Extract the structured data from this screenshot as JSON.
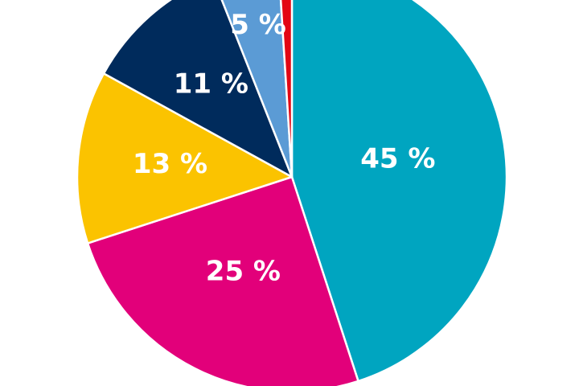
{
  "chart_data": {
    "type": "pie",
    "values": [
      45,
      25,
      13,
      11,
      5,
      1
    ],
    "value_labels": [
      "45 %",
      "25 %",
      "13 %",
      "11 %",
      "5 %",
      null
    ],
    "colors": [
      "#00a5c0",
      "#e2007a",
      "#fbc300",
      "#002b5c",
      "#5b9bd5",
      "#e30613"
    ]
  }
}
